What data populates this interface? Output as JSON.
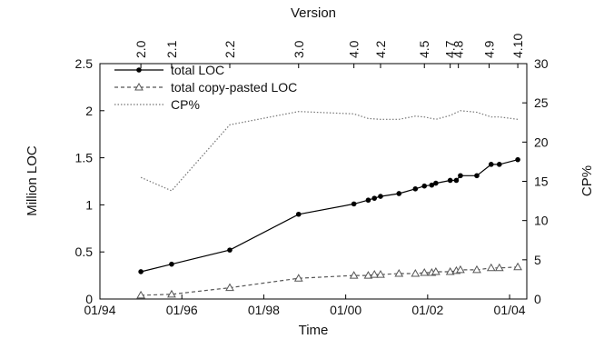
{
  "chart_data": {
    "type": "line",
    "top_axis_label": "Version",
    "xlabel": "Time",
    "ylabel": "Million LOC",
    "y2label": "CP%",
    "ylim": [
      0,
      2.5
    ],
    "y2lim": [
      0,
      30
    ],
    "xlim": [
      1994.0,
      2004.42
    ],
    "x_ticks": [
      "01/94",
      "01/96",
      "01/98",
      "01/00",
      "01/02",
      "01/04"
    ],
    "x_tick_values": [
      1994.0,
      1996.0,
      1998.0,
      2000.0,
      2002.0,
      2004.0
    ],
    "y_ticks": [
      "0",
      "0.5",
      "1",
      "1.5",
      "2",
      "2.5"
    ],
    "y_tick_values": [
      0,
      0.5,
      1,
      1.5,
      2,
      2.5
    ],
    "y2_ticks": [
      "0",
      "5",
      "10",
      "15",
      "20",
      "25",
      "30"
    ],
    "y2_tick_values": [
      0,
      5,
      10,
      15,
      20,
      25,
      30
    ],
    "versions": [
      {
        "label": "2.0",
        "x": 1995.0
      },
      {
        "label": "2.1",
        "x": 1995.75
      },
      {
        "label": "2.2",
        "x": 1997.17
      },
      {
        "label": "3.0",
        "x": 1998.85
      },
      {
        "label": "4.0",
        "x": 2000.2
      },
      {
        "label": "4.2",
        "x": 2000.85
      },
      {
        "label": "4.5",
        "x": 2001.92
      },
      {
        "label": "4.7",
        "x": 2002.55
      },
      {
        "label": "4.8",
        "x": 2002.75
      },
      {
        "label": "4.9",
        "x": 2003.5
      },
      {
        "label": "4.10",
        "x": 2004.2
      }
    ],
    "legend": {
      "position": "top-left",
      "entries": [
        "total LOC",
        "total copy-pasted LOC",
        "CP%"
      ]
    },
    "series": [
      {
        "name": "total LOC",
        "axis": "left",
        "style": "solid",
        "marker": "filled-circle",
        "x": [
          1995.0,
          1995.75,
          1997.17,
          1998.85,
          2000.2,
          2000.55,
          2000.7,
          2000.85,
          2001.3,
          2001.7,
          2001.92,
          2002.1,
          2002.2,
          2002.55,
          2002.7,
          2002.8,
          2003.2,
          2003.55,
          2003.75,
          2004.2
        ],
        "values": [
          0.29,
          0.37,
          0.52,
          0.9,
          1.01,
          1.05,
          1.07,
          1.09,
          1.12,
          1.17,
          1.2,
          1.21,
          1.23,
          1.26,
          1.26,
          1.31,
          1.31,
          1.43,
          1.43,
          1.48
        ]
      },
      {
        "name": "total copy-pasted LOC",
        "axis": "left",
        "style": "dashed",
        "marker": "open-triangle",
        "x": [
          1995.0,
          1995.75,
          1997.17,
          1998.85,
          2000.2,
          2000.55,
          2000.7,
          2000.85,
          2001.3,
          2001.7,
          2001.92,
          2002.1,
          2002.2,
          2002.55,
          2002.7,
          2002.8,
          2003.2,
          2003.55,
          2003.75,
          2004.2
        ],
        "values": [
          0.04,
          0.05,
          0.12,
          0.22,
          0.25,
          0.25,
          0.26,
          0.26,
          0.27,
          0.27,
          0.28,
          0.28,
          0.29,
          0.29,
          0.3,
          0.31,
          0.31,
          0.33,
          0.33,
          0.34
        ]
      },
      {
        "name": "CP%",
        "axis": "right",
        "style": "dotted",
        "marker": "none",
        "x": [
          1995.0,
          1995.75,
          1997.17,
          1998.85,
          2000.2,
          2000.55,
          2000.85,
          2001.3,
          2001.7,
          2001.92,
          2002.2,
          2002.55,
          2002.8,
          2003.2,
          2003.55,
          2003.75,
          2004.2
        ],
        "values": [
          15.5,
          13.8,
          22.2,
          23.9,
          23.6,
          23.0,
          22.9,
          22.9,
          23.3,
          23.2,
          22.9,
          23.4,
          24.0,
          23.8,
          23.2,
          23.2,
          22.9
        ]
      }
    ]
  }
}
